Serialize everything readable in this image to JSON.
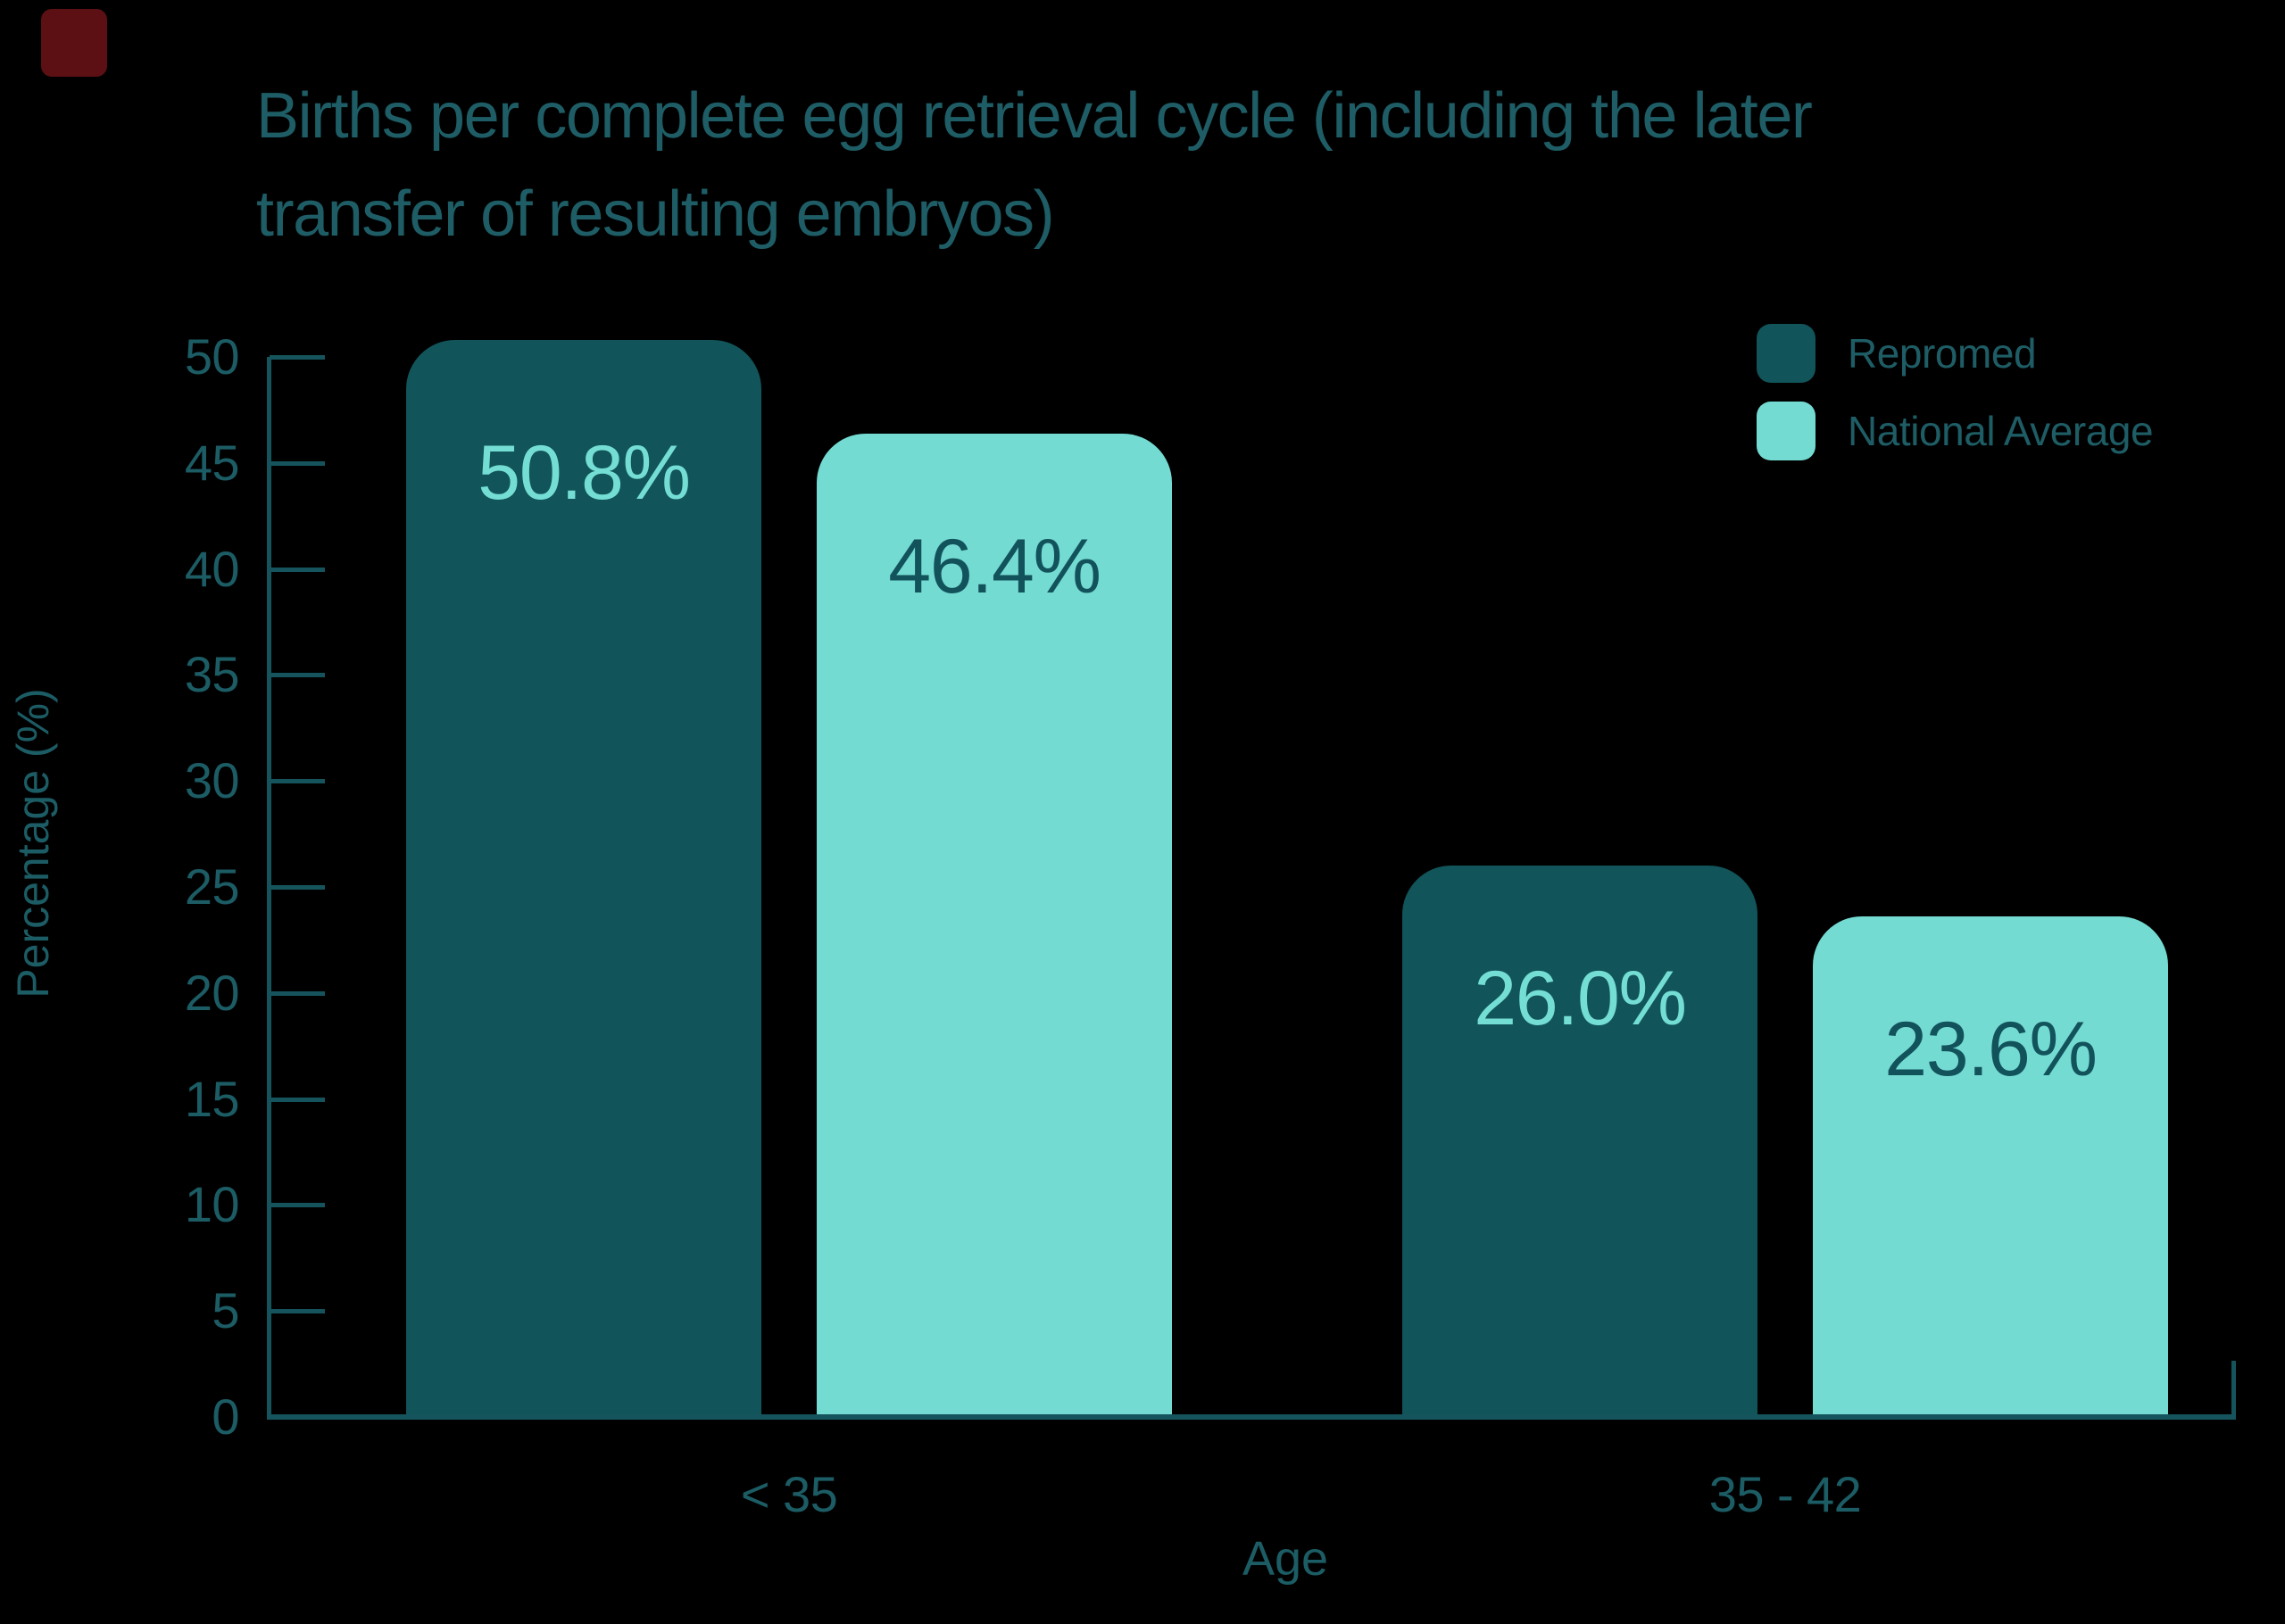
{
  "page": {
    "background_color": "#000000",
    "indicator": {
      "icon": "red-square",
      "color": "#5C1013"
    }
  },
  "chart_data": {
    "type": "bar",
    "title": "Births per complete egg retrieval cycle (including the later transfer of resulting embryos)",
    "title_lines": [
      "Births per complete egg retrieval cycle (including the later",
      "transfer of resulting embryos)"
    ],
    "xlabel": "Age",
    "ylabel": "Percentage (%)",
    "categories": [
      "< 35",
      "35 - 42"
    ],
    "series": [
      {
        "name": "Repromed",
        "color": "#115459",
        "label_color": "#74DED4",
        "values": [
          50.8,
          26.0
        ],
        "value_labels": [
          "50.8%",
          "26.0%"
        ]
      },
      {
        "name": "National Average",
        "color": "#74DBD2",
        "label_color": "#12525B",
        "values": [
          46.4,
          23.6
        ],
        "value_labels": [
          "46.4%",
          "23.6%"
        ]
      }
    ],
    "ylim": [
      0,
      50
    ],
    "yticks": [
      0,
      5,
      10,
      15,
      20,
      25,
      30,
      35,
      40,
      45,
      50
    ],
    "grid": false,
    "legend_position": "top-right",
    "text_color": "#1E5D65",
    "axis_color": "#15545C"
  }
}
